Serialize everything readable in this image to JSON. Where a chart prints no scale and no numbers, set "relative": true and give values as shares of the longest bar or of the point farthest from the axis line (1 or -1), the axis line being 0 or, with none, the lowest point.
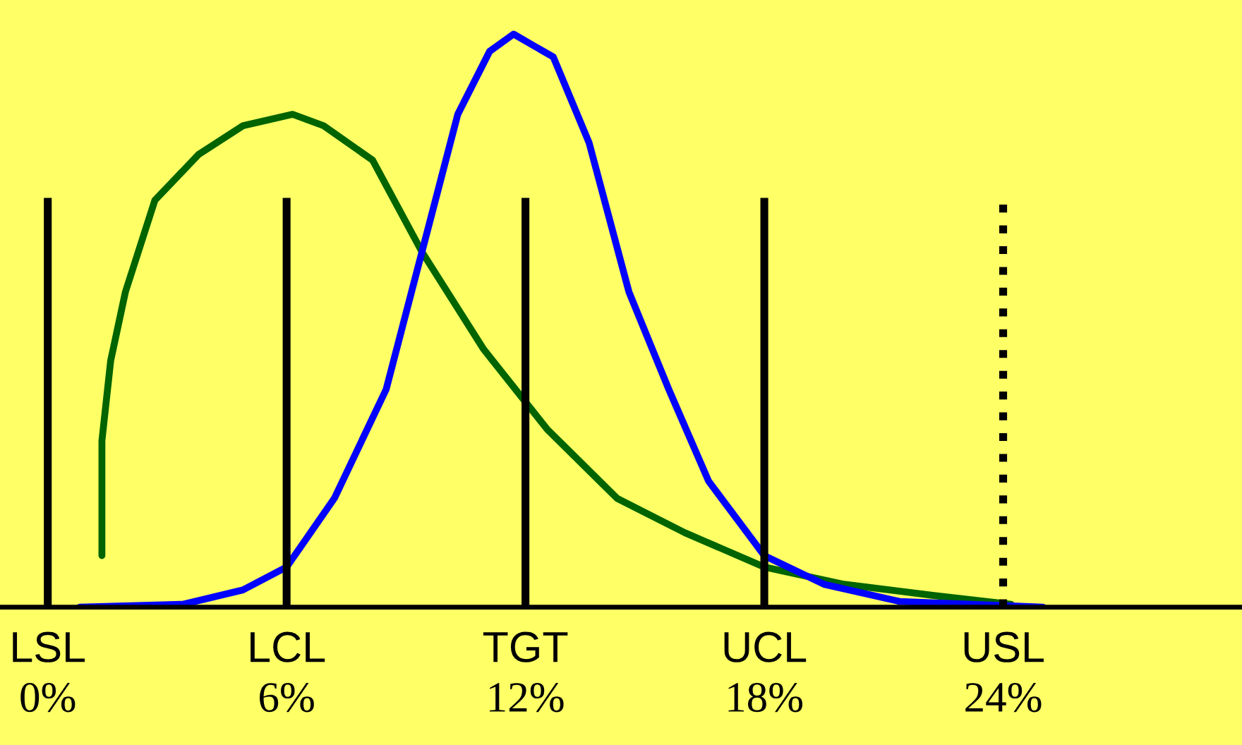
{
  "chart_data": {
    "type": "line",
    "relative": true,
    "xlim": [
      -1.2,
      30
    ],
    "xticks": [
      {
        "value": 0,
        "label": "0%"
      },
      {
        "value": 6,
        "label": "6%"
      },
      {
        "value": 12,
        "label": "12%"
      },
      {
        "value": 18,
        "label": "18%"
      },
      {
        "value": 24,
        "label": "24%"
      }
    ],
    "series": [
      {
        "color": "#006400",
        "x": [
          1.36,
          1.36,
          1.58,
          1.95,
          2.69,
          3.79,
          4.9,
          6.15,
          6.93,
          8.16,
          9.4,
          10.95,
          12.55,
          14.3,
          16.0,
          18.0,
          20.0,
          22.3,
          24.2
        ],
        "values": [
          0.09,
          0.29,
          0.43,
          0.55,
          0.71,
          0.79,
          0.84,
          0.86,
          0.84,
          0.78,
          0.62,
          0.45,
          0.31,
          0.19,
          0.13,
          0.07,
          0.04,
          0.02,
          0.005
        ]
      },
      {
        "color": "#0000ff",
        "x": [
          0.8,
          3.4,
          4.9,
          6.0,
          7.2,
          8.5,
          9.4,
          10.3,
          11.1,
          11.7,
          12.7,
          13.6,
          14.6,
          15.6,
          16.6,
          18.0,
          19.5,
          21.4,
          25.0
        ],
        "values": [
          0,
          0.005,
          0.03,
          0.07,
          0.19,
          0.38,
          0.62,
          0.86,
          0.97,
          1.0,
          0.96,
          0.81,
          0.55,
          0.38,
          0.22,
          0.09,
          0.04,
          0.01,
          0
        ]
      }
    ],
    "ref_lines": [
      {
        "axis": "x",
        "value": 0,
        "label": "LSL",
        "color": "#000000",
        "line_style": "solid"
      },
      {
        "axis": "x",
        "value": 6,
        "label": "LCL",
        "color": "#000000",
        "line_style": "solid"
      },
      {
        "axis": "x",
        "value": 12,
        "label": "TGT",
        "color": "#000000",
        "line_style": "solid"
      },
      {
        "axis": "x",
        "value": 18,
        "label": "UCL",
        "color": "#000000",
        "line_style": "solid"
      },
      {
        "axis": "x",
        "value": 24,
        "label": "USL",
        "color": "#000000",
        "line_style": "dotted"
      }
    ],
    "grid": false,
    "legend": false
  }
}
